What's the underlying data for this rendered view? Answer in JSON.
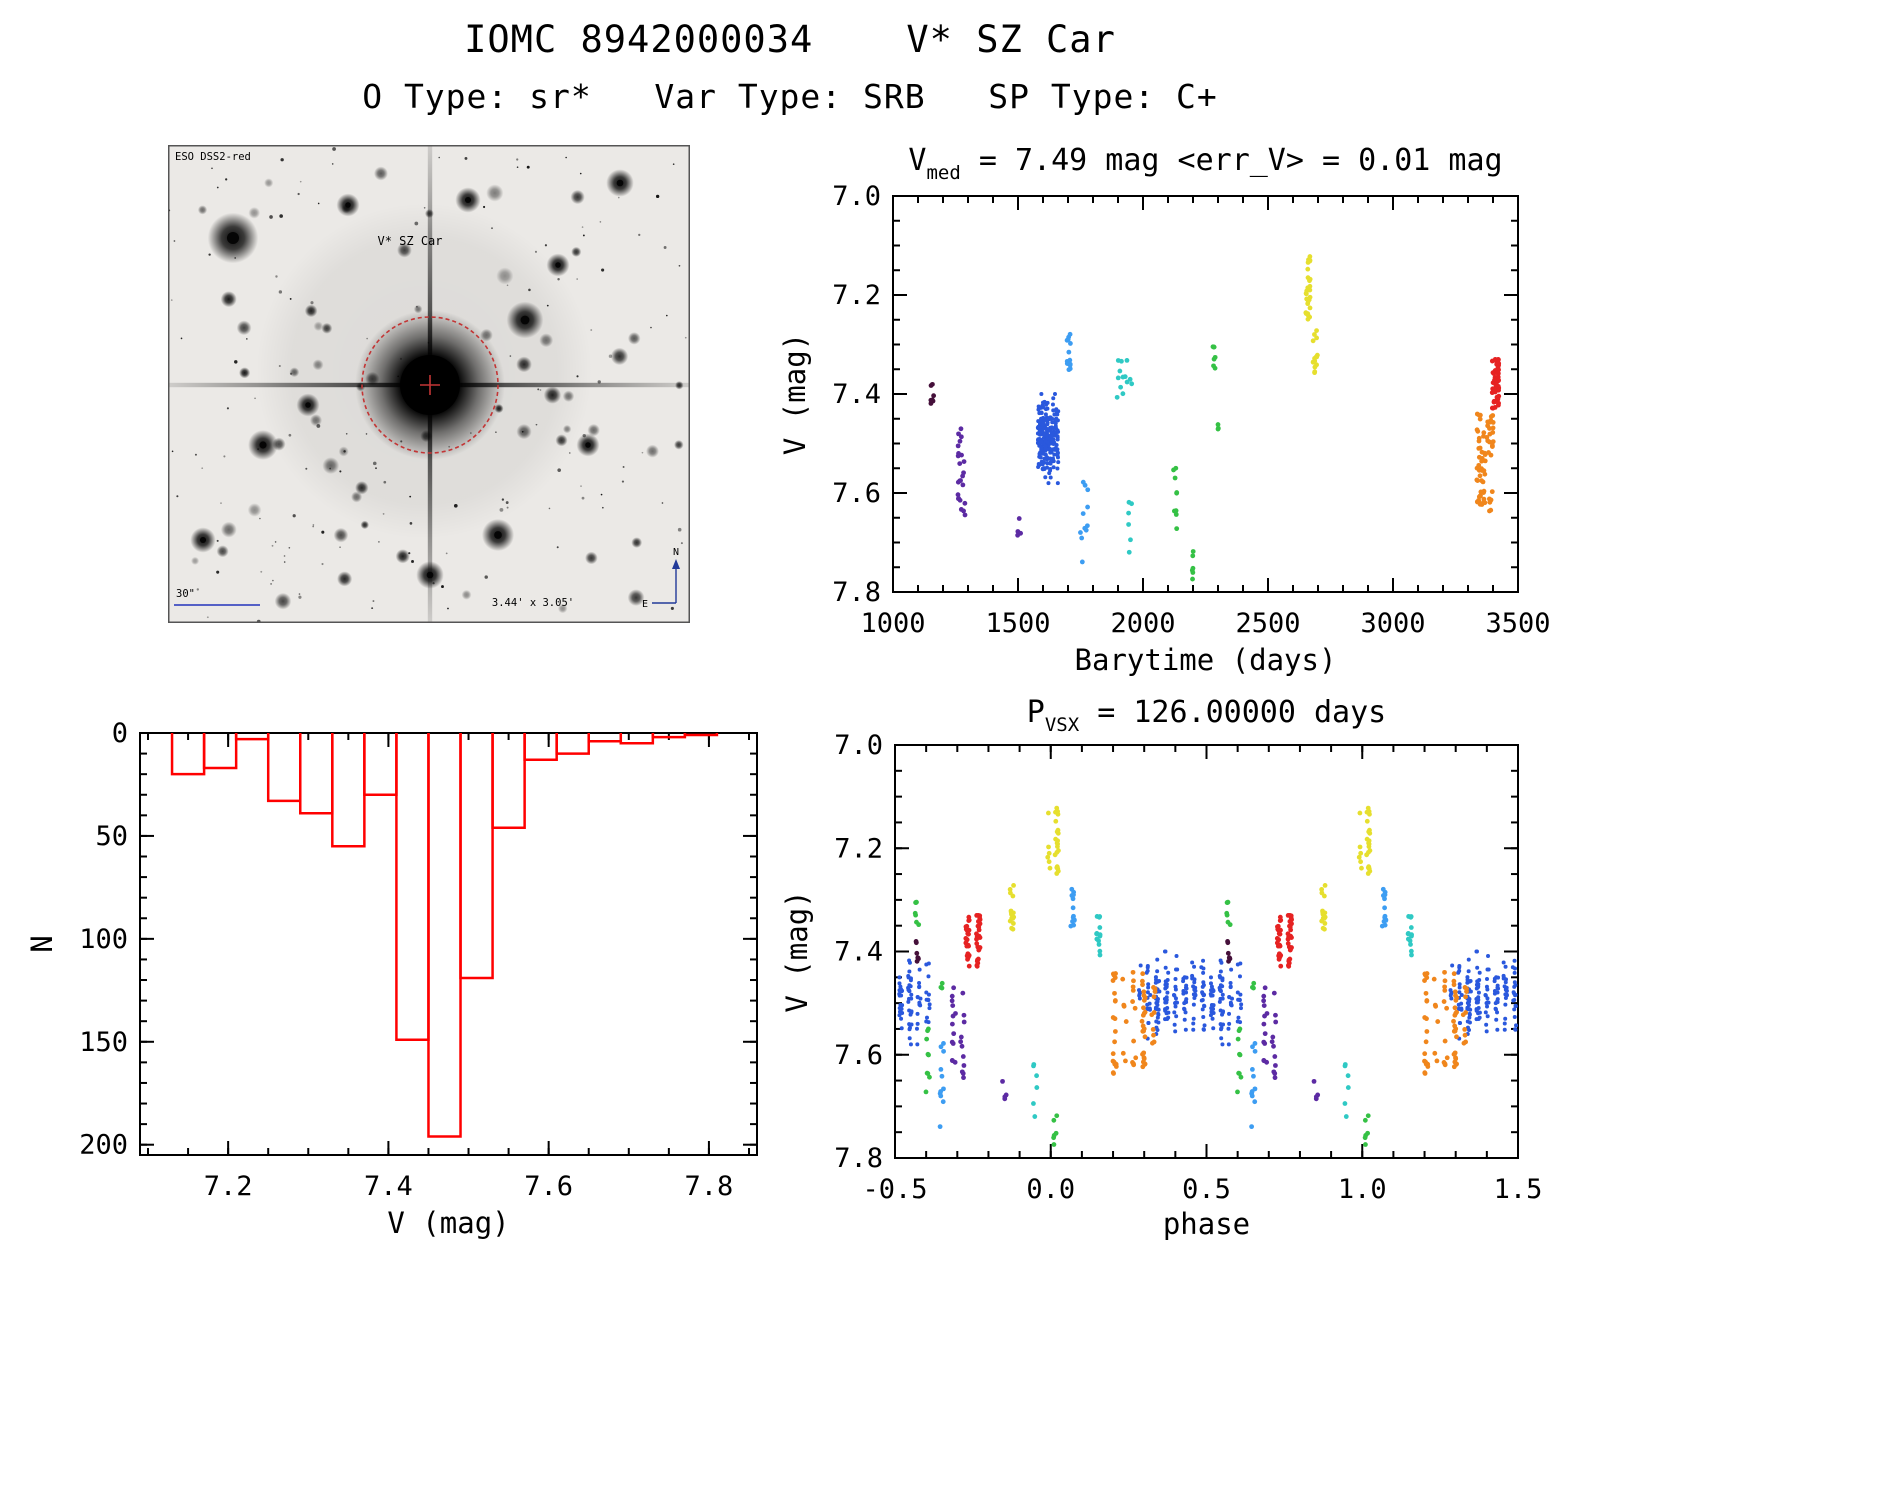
{
  "page": {
    "title": "IOMC 8942000034    V* SZ Car",
    "subtitle": "O Type: sr*   Var Type: SRB   SP Type: C+"
  },
  "finder": {
    "survey_label": "ESO DSS2-red",
    "target_label": "V* SZ Car",
    "scale_label": "30\"",
    "fov_label": "3.44' x 3.05'",
    "north_label": "N",
    "east_label": "E"
  },
  "chart_data": [
    {
      "id": "lightcurve",
      "type": "scatter",
      "title": {
        "pre": "V",
        "sub": "med",
        "rest": " = 7.49 mag <err_V> = 0.01 mag"
      },
      "xlabel": "Barytime (days)",
      "ylabel": "V (mag)",
      "xlim": [
        1000,
        3500
      ],
      "ylim": [
        7.0,
        7.8
      ],
      "y_inverted": true,
      "xticks": {
        "values": [
          1000,
          1500,
          2000,
          2500,
          3000,
          3500
        ],
        "labels": [
          "1000",
          "1500",
          "2000",
          "2500",
          "3000",
          "3500"
        ]
      },
      "yticks": {
        "values": [
          7.0,
          7.2,
          7.4,
          7.6,
          7.8
        ],
        "labels": [
          "7.0",
          "7.2",
          "7.4",
          "7.6",
          "7.8"
        ]
      },
      "xminor": 100,
      "yminor": 0.05,
      "series": [
        {
          "epoch": "e01",
          "color": "#45103a",
          "t": [
            1150,
            1172
          ],
          "v": [
            7.37,
            7.43
          ],
          "n": 7,
          "phase": [
            0.555,
            0.585
          ]
        },
        {
          "epoch": "e02",
          "color": "#5c2ba3",
          "t": [
            1258,
            1292
          ],
          "v": [
            7.47,
            7.67
          ],
          "n": 24,
          "phase": [
            0.675,
            0.73
          ]
        },
        {
          "epoch": "e03",
          "color": "#5c2ba3",
          "t": [
            1495,
            1512
          ],
          "v": [
            7.65,
            7.69
          ],
          "n": 4,
          "phase": [
            0.84,
            0.862
          ]
        },
        {
          "epoch": "e04",
          "color": "#2a58dd",
          "t": [
            1578,
            1662
          ],
          "v": [
            7.4,
            7.58
          ],
          "n": 240,
          "phase": [
            0.27,
            0.62
          ],
          "dense": true
        },
        {
          "epoch": "e05",
          "color": "#3d9df2",
          "t": [
            1686,
            1712
          ],
          "v": [
            7.27,
            7.36
          ],
          "n": 13,
          "phase": [
            0.05,
            0.09
          ]
        },
        {
          "epoch": "e06",
          "color": "#3d9df2",
          "t": [
            1748,
            1782
          ],
          "v": [
            7.57,
            7.76
          ],
          "n": 11,
          "phase": [
            0.63,
            0.67
          ]
        },
        {
          "epoch": "e07",
          "color": "#2fc9c4",
          "t": [
            1892,
            1962
          ],
          "v": [
            7.33,
            7.42
          ],
          "n": 13,
          "phase": [
            0.13,
            0.175
          ]
        },
        {
          "epoch": "e08",
          "color": "#2fc9c4",
          "t": [
            1940,
            1965
          ],
          "v": [
            7.6,
            7.72
          ],
          "n": 6,
          "phase": [
            0.935,
            0.965
          ]
        },
        {
          "epoch": "e09",
          "color": "#35c145",
          "t": [
            2112,
            2142
          ],
          "v": [
            7.54,
            7.68
          ],
          "n": 9,
          "phase": [
            0.59,
            0.62
          ]
        },
        {
          "epoch": "e10",
          "color": "#35c145",
          "t": [
            2196,
            2208
          ],
          "v": [
            7.71,
            7.78
          ],
          "n": 6,
          "phase": [
            0.0,
            0.03
          ]
        },
        {
          "epoch": "e11",
          "color": "#35c145",
          "t": [
            2276,
            2292
          ],
          "v": [
            7.29,
            7.36
          ],
          "n": 7,
          "phase": [
            0.555,
            0.585
          ]
        },
        {
          "epoch": "e12",
          "color": "#35c145",
          "t": [
            2298,
            2308
          ],
          "v": [
            7.45,
            7.48
          ],
          "n": 3,
          "phase": [
            0.645,
            0.66
          ]
        },
        {
          "epoch": "e13",
          "color": "#e6df2e",
          "t": [
            2650,
            2670
          ],
          "v": [
            7.12,
            7.25
          ],
          "n": 28,
          "phase": [
            0.985,
            1.03
          ]
        },
        {
          "epoch": "e14",
          "color": "#e6df2e",
          "t": [
            2678,
            2702
          ],
          "v": [
            7.26,
            7.36
          ],
          "n": 15,
          "phase": [
            0.855,
            0.895
          ]
        },
        {
          "epoch": "e15",
          "color": "#f0861c",
          "t": [
            3328,
            3402
          ],
          "v": [
            7.44,
            7.64
          ],
          "n": 72,
          "phase": [
            0.19,
            0.345
          ]
        },
        {
          "epoch": "e16",
          "color": "#e62222",
          "t": [
            3396,
            3424
          ],
          "v": [
            7.33,
            7.43
          ],
          "n": 52,
          "phase": [
            0.715,
            0.785
          ]
        }
      ]
    },
    {
      "id": "histogram",
      "type": "bar",
      "xlabel": "V (mag)",
      "ylabel": "N",
      "bin_start": 7.13,
      "bin_width": 0.04,
      "counts": [
        20,
        17,
        3,
        33,
        39,
        55,
        30,
        149,
        196,
        119,
        46,
        13,
        10,
        4,
        5,
        2,
        1
      ],
      "xlim": [
        7.09,
        7.86
      ],
      "ylim": [
        0,
        205
      ],
      "xticks": {
        "values": [
          7.2,
          7.4,
          7.6,
          7.8
        ],
        "labels": [
          "7.2",
          "7.4",
          "7.6",
          "7.8"
        ]
      },
      "yticks": {
        "values": [
          0,
          50,
          100,
          150,
          200
        ],
        "labels": [
          "0",
          "50",
          "100",
          "150",
          "200"
        ]
      },
      "xminor": 0.05,
      "yminor": 10,
      "color": "#ff0000"
    },
    {
      "id": "phase",
      "type": "scatter",
      "title": {
        "pre": "P",
        "sub": "VSX",
        "rest": " = 126.00000 days"
      },
      "xlabel": "phase",
      "ylabel": "V (mag)",
      "period_days": 126.0,
      "xlim": [
        -0.5,
        1.5
      ],
      "ylim": [
        7.0,
        7.8
      ],
      "y_inverted": true,
      "xticks": {
        "values": [
          -0.5,
          0.0,
          0.5,
          1.0,
          1.5
        ],
        "labels": [
          "-0.5",
          "0.0",
          "0.5",
          "1.0",
          "1.5"
        ]
      },
      "yticks": {
        "values": [
          7.0,
          7.2,
          7.4,
          7.6,
          7.8
        ],
        "labels": [
          "7.0",
          "7.2",
          "7.4",
          "7.6",
          "7.8"
        ]
      },
      "xminor": 0.1,
      "yminor": 0.05,
      "series_ref": "lightcurve"
    }
  ]
}
